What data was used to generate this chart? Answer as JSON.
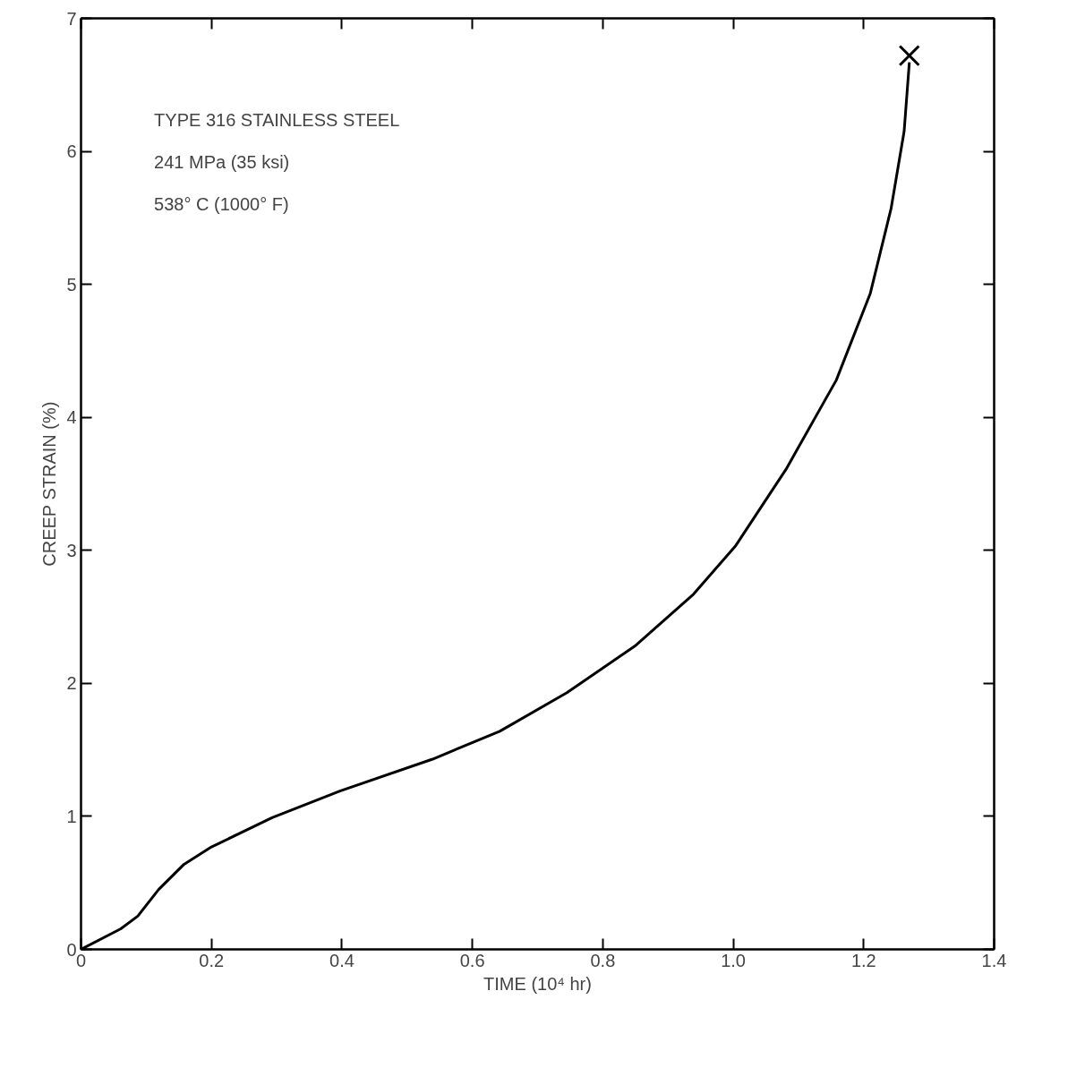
{
  "chart_data": {
    "type": "line",
    "xlabel": "TIME (10⁴ hr)",
    "ylabel": "CREEP STRAIN (%)",
    "xlim": [
      0,
      1.4
    ],
    "ylim": [
      0,
      7
    ],
    "xticks": [
      0,
      0.2,
      0.4,
      0.6,
      0.8,
      {
        "value": 1.0,
        "label": "1.0"
      },
      1.2,
      1.4
    ],
    "yticks": [
      0,
      1,
      2,
      3,
      4,
      5,
      6,
      7
    ],
    "grid": false,
    "annotations": [
      "TYPE 316 STAINLESS STEEL",
      "241 MPa (35 ksi)",
      "538° C (1000° F)"
    ],
    "series": [
      {
        "color": "#000000",
        "x": [
          0,
          0.061,
          0.087,
          0.119,
          0.158,
          0.2,
          0.293,
          0.397,
          0.539,
          0.642,
          0.745,
          0.849,
          0.939,
          1.003,
          1.081,
          1.158,
          1.21,
          1.242,
          1.262,
          1.27
        ],
        "values": [
          0,
          0.155,
          0.25,
          0.45,
          0.64,
          0.77,
          0.99,
          1.19,
          1.43,
          1.64,
          1.93,
          2.28,
          2.67,
          3.03,
          3.61,
          4.28,
          4.93,
          5.57,
          6.15,
          6.67
        ]
      },
      {
        "type": "scatter",
        "marker": "cross",
        "color": "#000000",
        "x": [
          1.27
        ],
        "values": [
          6.72
        ]
      }
    ]
  }
}
